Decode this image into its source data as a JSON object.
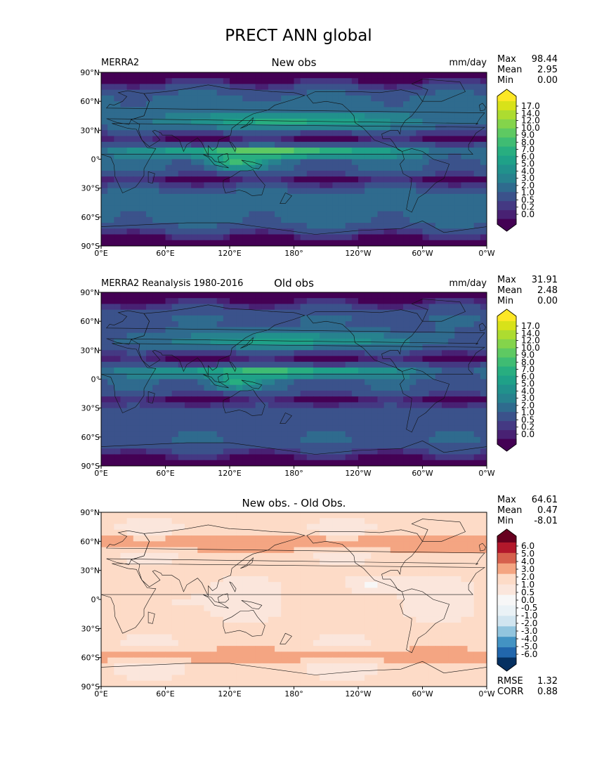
{
  "title": "PRECT ANN global",
  "colors": {
    "map_seq": [
      "#440154",
      "#482173",
      "#443983",
      "#3b528b",
      "#2f6b8e",
      "#27828e",
      "#21918c",
      "#1fa188",
      "#28ae80",
      "#3fbc73",
      "#5ec962",
      "#84d44b",
      "#addc30",
      "#d8e219",
      "#fde725"
    ],
    "map_div": [
      "#053061",
      "#2166ac",
      "#4393c3",
      "#92c5de",
      "#d1e5f0",
      "#eaf2f6",
      "#f7f7f7",
      "#fbe6dc",
      "#fddbc7",
      "#f4a582",
      "#d6604d",
      "#b2182b",
      "#67001f"
    ],
    "land_line": "#111111"
  },
  "axes": {
    "lat_ticks": [
      "90°N",
      "60°N",
      "30°N",
      "0°",
      "30°S",
      "60°S",
      "90°S"
    ],
    "lon_ticks": [
      "0°E",
      "60°E",
      "120°E",
      "180°",
      "120°W",
      "60°W",
      "0°W"
    ]
  },
  "panels": [
    {
      "left_label": "MERRA2",
      "center_label": "New obs",
      "right_label": "mm/day",
      "stats": [
        {
          "k": "Max",
          "v": "98.44"
        },
        {
          "k": "Mean",
          "v": "2.95"
        },
        {
          "k": "Min",
          "v": "0.00"
        }
      ],
      "colorbar_ticks": [
        "17.0",
        "14.0",
        "12.0",
        "10.0",
        "9.0",
        "8.0",
        "7.0",
        "6.0",
        "5.0",
        "4.0",
        "3.0",
        "2.0",
        "1.0",
        "0.5",
        "0.2",
        "0.0"
      ]
    },
    {
      "left_label": "MERRA2 Reanalysis 1980-2016",
      "center_label": "Old obs",
      "right_label": "mm/day",
      "stats": [
        {
          "k": "Max",
          "v": "31.91"
        },
        {
          "k": "Mean",
          "v": "2.48"
        },
        {
          "k": "Min",
          "v": "0.00"
        }
      ],
      "colorbar_ticks": [
        "17.0",
        "14.0",
        "12.0",
        "10.0",
        "9.0",
        "8.0",
        "7.0",
        "6.0",
        "5.0",
        "4.0",
        "3.0",
        "2.0",
        "1.0",
        "0.5",
        "0.2",
        "0.0"
      ]
    },
    {
      "left_label": "",
      "center_label": "New obs. - Old Obs.",
      "right_label": "",
      "stats": [
        {
          "k": "Max",
          "v": "64.61"
        },
        {
          "k": "Mean",
          "v": "0.47"
        },
        {
          "k": "Min",
          "v": "-8.01"
        }
      ],
      "colorbar_ticks": [
        "6.0",
        "5.0",
        "4.0",
        "3.0",
        "2.0",
        "1.0",
        "0.5",
        "0.0",
        "-0.5",
        "-1.0",
        "-2.0",
        "-3.0",
        "-4.0",
        "-5.0",
        "-6.0"
      ],
      "bottom_stats": [
        {
          "k": "RMSE",
          "v": "1.32"
        },
        {
          "k": "CORR",
          "v": "0.88"
        }
      ]
    }
  ],
  "chart_data": [
    {
      "type": "heatmap",
      "title": "New obs",
      "variable": "PRECT ANN global",
      "units": "mm/day",
      "x_ticks": [
        "0°E",
        "60°E",
        "120°E",
        "180°",
        "120°W",
        "60°W",
        "0°W"
      ],
      "y_ticks": [
        "90°N",
        "60°N",
        "30°N",
        "0°",
        "30°S",
        "60°S",
        "90°S"
      ],
      "levels": [
        0.0,
        0.2,
        0.5,
        1.0,
        2.0,
        3.0,
        4.0,
        5.0,
        6.0,
        7.0,
        8.0,
        9.0,
        10.0,
        12.0,
        14.0,
        17.0
      ],
      "max": 98.44,
      "mean": 2.95,
      "min": 0.0
    },
    {
      "type": "heatmap",
      "title": "Old obs",
      "variable": "PRECT ANN global",
      "units": "mm/day",
      "x_ticks": [
        "0°E",
        "60°E",
        "120°E",
        "180°",
        "120°W",
        "60°W",
        "0°W"
      ],
      "y_ticks": [
        "90°N",
        "60°N",
        "30°N",
        "0°",
        "30°S",
        "60°S",
        "90°S"
      ],
      "levels": [
        0.0,
        0.2,
        0.5,
        1.0,
        2.0,
        3.0,
        4.0,
        5.0,
        6.0,
        7.0,
        8.0,
        9.0,
        10.0,
        12.0,
        14.0,
        17.0
      ],
      "max": 31.91,
      "mean": 2.48,
      "min": 0.0
    },
    {
      "type": "heatmap",
      "title": "New obs. - Old Obs.",
      "variable": "PRECT ANN global",
      "x_ticks": [
        "0°E",
        "60°E",
        "120°E",
        "180°",
        "120°W",
        "60°W",
        "0°W"
      ],
      "y_ticks": [
        "90°N",
        "60°N",
        "30°N",
        "0°",
        "30°S",
        "60°S",
        "90°S"
      ],
      "levels": [
        -6.0,
        -5.0,
        -4.0,
        -3.0,
        -2.0,
        -1.0,
        -0.5,
        0.0,
        0.5,
        1.0,
        2.0,
        3.0,
        4.0,
        5.0,
        6.0
      ],
      "max": 64.61,
      "mean": 0.47,
      "min": -8.01,
      "rmse": 1.32,
      "corr": 0.88
    }
  ]
}
